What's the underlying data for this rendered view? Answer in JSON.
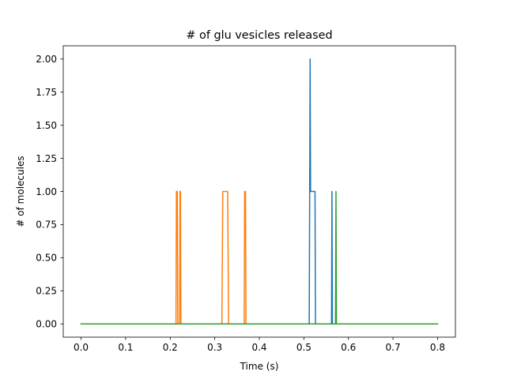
{
  "chart_data": {
    "type": "line",
    "title": "# of glu vesicles released",
    "xlabel": "Time (s)",
    "ylabel": "# of molecules",
    "xlim": [
      -0.04,
      0.84
    ],
    "ylim": [
      -0.1,
      2.1
    ],
    "xticks": [
      "0.0",
      "0.1",
      "0.2",
      "0.3",
      "0.4",
      "0.5",
      "0.6",
      "0.7",
      "0.8"
    ],
    "yticks": [
      "0.00",
      "0.25",
      "0.50",
      "0.75",
      "1.00",
      "1.25",
      "1.50",
      "1.75",
      "2.00"
    ],
    "grid": false,
    "series": [
      {
        "color": "#1f77b4",
        "points": [
          [
            0.0,
            0
          ],
          [
            0.512,
            0
          ],
          [
            0.513,
            1
          ],
          [
            0.514,
            2
          ],
          [
            0.515,
            1
          ],
          [
            0.516,
            1
          ],
          [
            0.525,
            1
          ],
          [
            0.526,
            0
          ],
          [
            0.562,
            0
          ],
          [
            0.563,
            1
          ],
          [
            0.564,
            0
          ],
          [
            0.8,
            0
          ]
        ]
      },
      {
        "color": "#ff7f0e",
        "points": [
          [
            0.0,
            0
          ],
          [
            0.213,
            0
          ],
          [
            0.214,
            1
          ],
          [
            0.216,
            1
          ],
          [
            0.217,
            0
          ],
          [
            0.221,
            0
          ],
          [
            0.222,
            1
          ],
          [
            0.223,
            1
          ],
          [
            0.224,
            0
          ],
          [
            0.316,
            0
          ],
          [
            0.318,
            1
          ],
          [
            0.329,
            1
          ],
          [
            0.331,
            0
          ],
          [
            0.366,
            0
          ],
          [
            0.367,
            1
          ],
          [
            0.369,
            1
          ],
          [
            0.37,
            0
          ],
          [
            0.8,
            0
          ]
        ]
      },
      {
        "color": "#2ca02c",
        "points": [
          [
            0.0,
            0
          ],
          [
            0.571,
            0
          ],
          [
            0.572,
            1
          ],
          [
            0.573,
            0
          ],
          [
            0.8,
            0
          ]
        ]
      }
    ]
  }
}
